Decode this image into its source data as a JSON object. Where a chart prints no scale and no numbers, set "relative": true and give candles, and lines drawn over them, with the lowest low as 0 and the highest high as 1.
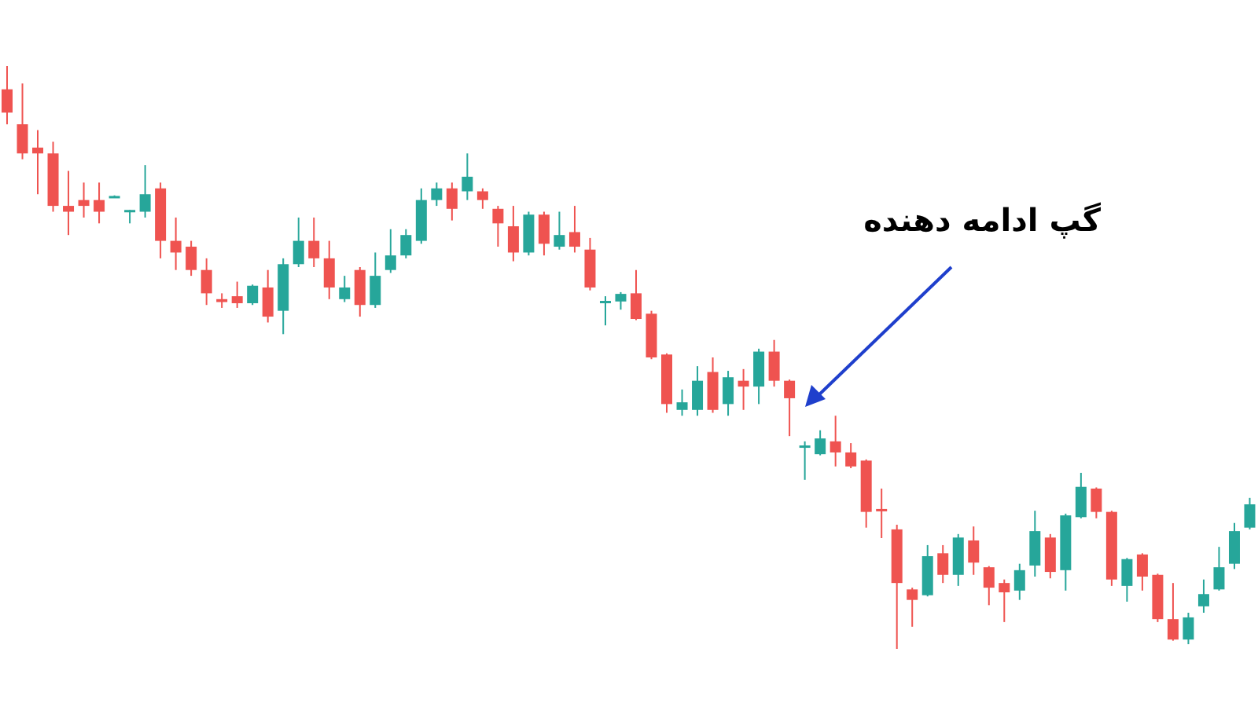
{
  "chart_data": {
    "type": "candlestick",
    "relative": true,
    "categories": [
      null,
      null,
      null,
      null,
      null,
      null,
      null,
      null,
      null,
      null,
      null,
      null,
      null,
      null,
      null,
      null,
      null,
      null,
      null,
      null,
      null,
      null,
      null,
      null,
      null,
      null,
      null,
      null,
      null,
      null,
      null,
      null,
      null,
      null,
      null,
      null,
      null,
      null,
      null,
      null,
      null,
      null,
      null,
      null,
      null,
      null,
      null,
      null,
      null,
      null,
      null,
      null,
      null,
      null,
      null,
      null,
      null,
      null,
      null,
      null,
      null,
      null,
      null,
      null,
      null,
      null,
      null,
      null,
      null,
      null,
      null,
      null,
      null,
      null,
      null,
      null,
      null,
      null,
      null,
      null,
      null,
      null
    ],
    "ohlc": [
      [
        0.96,
        1,
        0.9,
        0.92
      ],
      [
        0.9,
        0.97,
        0.84,
        0.85
      ],
      [
        0.86,
        0.89,
        0.78,
        0.85
      ],
      [
        0.85,
        0.87,
        0.75,
        0.76
      ],
      [
        0.76,
        0.82,
        0.71,
        0.75
      ],
      [
        0.77,
        0.8,
        0.74,
        0.76
      ],
      [
        0.77,
        0.8,
        0.73,
        0.75
      ],
      [
        0.775,
        0.778,
        0.775,
        0.777
      ],
      [
        0.75,
        0.753,
        0.73,
        0.753
      ],
      [
        0.75,
        0.83,
        0.74,
        0.78
      ],
      [
        0.79,
        0.8,
        0.67,
        0.7
      ],
      [
        0.7,
        0.74,
        0.65,
        0.68
      ],
      [
        0.69,
        0.7,
        0.64,
        0.65
      ],
      [
        0.65,
        0.67,
        0.59,
        0.61
      ],
      [
        0.6,
        0.61,
        0.585,
        0.595
      ],
      [
        0.605,
        0.63,
        0.585,
        0.593
      ],
      [
        0.593,
        0.625,
        0.59,
        0.623
      ],
      [
        0.62,
        0.65,
        0.56,
        0.57
      ],
      [
        0.58,
        0.67,
        0.54,
        0.66
      ],
      [
        0.66,
        0.74,
        0.655,
        0.7
      ],
      [
        0.7,
        0.74,
        0.655,
        0.67
      ],
      [
        0.67,
        0.7,
        0.6,
        0.62
      ],
      [
        0.6,
        0.64,
        0.595,
        0.62
      ],
      [
        0.65,
        0.655,
        0.57,
        0.59
      ],
      [
        0.59,
        0.68,
        0.585,
        0.64
      ],
      [
        0.65,
        0.72,
        0.645,
        0.675
      ],
      [
        0.675,
        0.72,
        0.67,
        0.71
      ],
      [
        0.7,
        0.79,
        0.695,
        0.77
      ],
      [
        0.77,
        0.8,
        0.76,
        0.79
      ],
      [
        0.79,
        0.8,
        0.735,
        0.755
      ],
      [
        0.785,
        0.85,
        0.77,
        0.81
      ],
      [
        0.785,
        0.79,
        0.755,
        0.77
      ],
      [
        0.755,
        0.76,
        0.69,
        0.73
      ],
      [
        0.725,
        0.76,
        0.665,
        0.68
      ],
      [
        0.68,
        0.75,
        0.675,
        0.745
      ],
      [
        0.745,
        0.75,
        0.675,
        0.695
      ],
      [
        0.69,
        0.75,
        0.685,
        0.71
      ],
      [
        0.715,
        0.76,
        0.68,
        0.69
      ],
      [
        0.685,
        0.705,
        0.615,
        0.62
      ],
      [
        0.595,
        0.605,
        0.555,
        0.597
      ],
      [
        0.596,
        0.612,
        0.582,
        0.609
      ],
      [
        0.61,
        0.65,
        0.564,
        0.566
      ],
      [
        0.575,
        0.58,
        0.497,
        0.5
      ],
      [
        0.505,
        0.507,
        0.405,
        0.42
      ],
      [
        0.41,
        0.445,
        0.4,
        0.423
      ],
      [
        0.41,
        0.485,
        0.4,
        0.46
      ],
      [
        0.475,
        0.5,
        0.405,
        0.41
      ],
      [
        0.42,
        0.477,
        0.4,
        0.466
      ],
      [
        0.46,
        0.48,
        0.41,
        0.45
      ],
      [
        0.45,
        0.515,
        0.42,
        0.51
      ],
      [
        0.51,
        0.53,
        0.45,
        0.46
      ],
      [
        0.46,
        0.462,
        0.365,
        0.43
      ],
      [
        0.347,
        0.356,
        0.29,
        0.349
      ],
      [
        0.334,
        0.375,
        0.332,
        0.361
      ],
      [
        0.356,
        0.4,
        0.313,
        0.337
      ],
      [
        0.337,
        0.353,
        0.31,
        0.313
      ],
      [
        0.323,
        0.325,
        0.208,
        0.235
      ],
      [
        0.24,
        0.275,
        0.19,
        0.238
      ],
      [
        0.205,
        0.213,
        0,
        0.113
      ],
      [
        0.102,
        0.105,
        0.038,
        0.084
      ],
      [
        0.092,
        0.178,
        0.09,
        0.159
      ],
      [
        0.164,
        0.178,
        0.113,
        0.127
      ],
      [
        0.127,
        0.197,
        0.108,
        0.191
      ],
      [
        0.186,
        0.21,
        0.127,
        0.148
      ],
      [
        0.14,
        0.142,
        0.075,
        0.105
      ],
      [
        0.113,
        0.119,
        0.046,
        0.097
      ],
      [
        0.1,
        0.146,
        0.084,
        0.135
      ],
      [
        0.143,
        0.237,
        0.124,
        0.202
      ],
      [
        0.191,
        0.197,
        0.121,
        0.132
      ],
      [
        0.135,
        0.232,
        0.1,
        0.229
      ],
      [
        0.226,
        0.302,
        0.224,
        0.278
      ],
      [
        0.275,
        0.277,
        0.224,
        0.235
      ],
      [
        0.235,
        0.237,
        0.108,
        0.119
      ],
      [
        0.108,
        0.156,
        0.081,
        0.154
      ],
      [
        0.162,
        0.164,
        0.1,
        0.124
      ],
      [
        0.127,
        0.129,
        0.046,
        0.051
      ],
      [
        0.051,
        0.113,
        0.014,
        0.016
      ],
      [
        0.016,
        0.062,
        0.008,
        0.054
      ],
      [
        0.073,
        0.119,
        0.062,
        0.094
      ],
      [
        0.102,
        0.175,
        0.1,
        0.14
      ],
      [
        0.146,
        0.216,
        0.137,
        0.202
      ],
      [
        0.208,
        0.259,
        0.205,
        0.248
      ]
    ],
    "colors": [
      "#ef5350",
      "#ef5350",
      "#ef5350",
      "#ef5350",
      "#ef5350",
      "#ef5350",
      "#ef5350",
      "#26a69a",
      "#26a69a",
      "#26a69a",
      "#ef5350",
      "#ef5350",
      "#ef5350",
      "#ef5350",
      "#ef5350",
      "#ef5350",
      "#26a69a",
      "#ef5350",
      "#26a69a",
      "#26a69a",
      "#ef5350",
      "#ef5350",
      "#26a69a",
      "#ef5350",
      "#26a69a",
      "#26a69a",
      "#26a69a",
      "#26a69a",
      "#26a69a",
      "#ef5350",
      "#26a69a",
      "#ef5350",
      "#ef5350",
      "#ef5350",
      "#26a69a",
      "#ef5350",
      "#26a69a",
      "#ef5350",
      "#ef5350",
      "#26a69a",
      "#26a69a",
      "#ef5350",
      "#ef5350",
      "#ef5350",
      "#26a69a",
      "#26a69a",
      "#ef5350",
      "#26a69a",
      "#ef5350",
      "#26a69a",
      "#ef5350",
      "#ef5350",
      "#26a69a",
      "#26a69a",
      "#ef5350",
      "#ef5350",
      "#ef5350",
      "#ef5350",
      "#ef5350",
      "#ef5350",
      "#26a69a",
      "#ef5350",
      "#26a69a",
      "#ef5350",
      "#ef5350",
      "#ef5350",
      "#26a69a",
      "#26a69a",
      "#ef5350",
      "#26a69a",
      "#26a69a",
      "#ef5350",
      "#ef5350",
      "#26a69a",
      "#ef5350",
      "#ef5350",
      "#ef5350",
      "#26a69a",
      "#26a69a",
      "#26a69a",
      "#26a69a",
      "#26a69a"
    ],
    "annotations": [
      "گپ ادامه دهنده"
    ]
  }
}
